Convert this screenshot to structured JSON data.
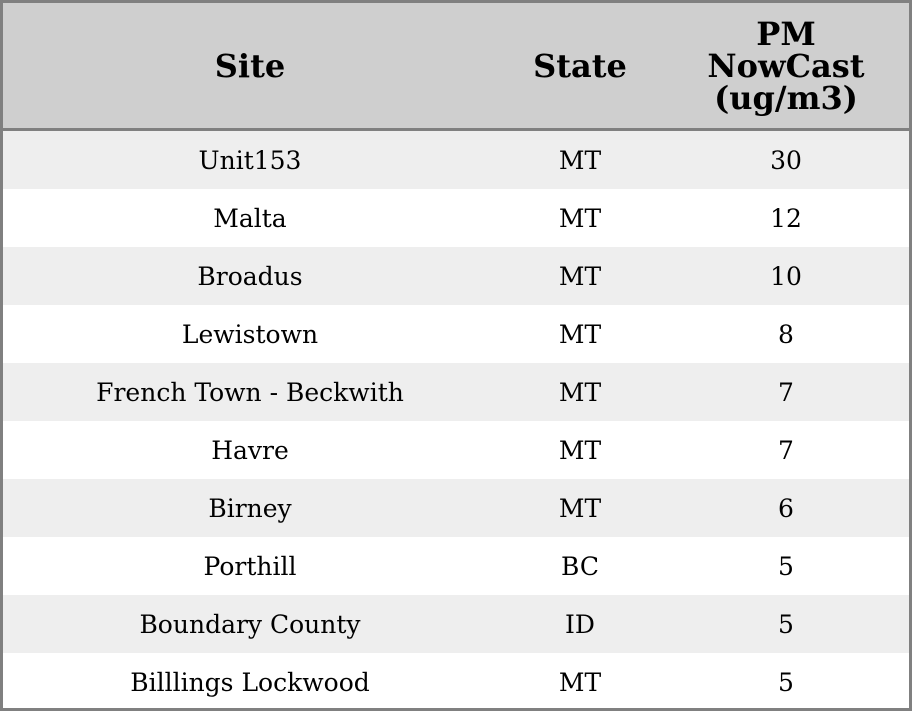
{
  "chart_data": {
    "type": "table",
    "columns": [
      "Site",
      "State",
      "PM NowCast (ug/m3)"
    ],
    "header_lines": [
      [
        "Site"
      ],
      [
        "State"
      ],
      [
        "PM",
        "NowCast",
        "(ug/m3)"
      ]
    ],
    "rows": [
      [
        "Unit153",
        "MT",
        "30"
      ],
      [
        "Malta",
        "MT",
        "12"
      ],
      [
        "Broadus",
        "MT",
        "10"
      ],
      [
        "Lewistown",
        "MT",
        "8"
      ],
      [
        "French Town - Beckwith",
        "MT",
        "7"
      ],
      [
        "Havre",
        "MT",
        "7"
      ],
      [
        "Birney",
        "MT",
        "6"
      ],
      [
        "Porthill",
        "BC",
        "5"
      ],
      [
        "Boundary County",
        "ID",
        "5"
      ],
      [
        "Billlings Lockwood",
        "MT",
        "5"
      ]
    ],
    "colors": {
      "header_bg": "#cfcfcf",
      "stripe_bg": "#eeeeee",
      "border": "#808080"
    }
  }
}
